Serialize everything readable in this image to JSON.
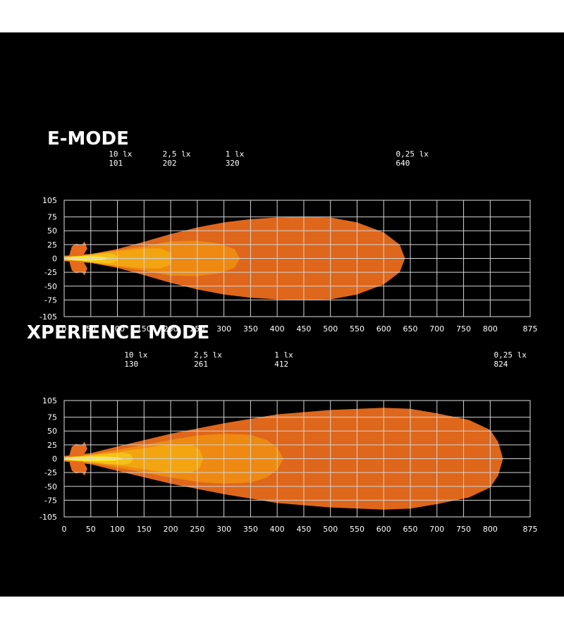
{
  "chart_data": [
    {
      "type": "area",
      "title": "E-MODE",
      "xlim": [
        0,
        875
      ],
      "ylim": [
        -105,
        105
      ],
      "x_ticks": [
        0,
        50,
        100,
        150,
        200,
        250,
        300,
        350,
        400,
        450,
        500,
        550,
        600,
        650,
        700,
        750,
        800,
        875
      ],
      "y_ticks": [
        105,
        75,
        50,
        25,
        0,
        -25,
        -50,
        -75,
        -105
      ],
      "grid": true,
      "colors": [
        "#e56a1c",
        "#ee8a12",
        "#f3a612",
        "#f5c219",
        "#ffef20"
      ],
      "annotations": [
        {
          "label": "10 lx",
          "value": "101",
          "x": 101
        },
        {
          "label": "2,5 lx",
          "value": "202",
          "x": 202
        },
        {
          "label": "1 lx",
          "value": "320",
          "x": 320
        },
        {
          "label": "0,25 lx",
          "value": "640",
          "x": 640
        }
      ],
      "contours": [
        {
          "level": "0,25 lx",
          "x": [
            0,
            50,
            100,
            150,
            200,
            250,
            300,
            350,
            400,
            450,
            500,
            550,
            600,
            630,
            640
          ],
          "y": [
            5,
            8,
            17,
            30,
            44,
            56,
            65,
            71,
            74,
            75,
            74,
            65,
            47,
            25,
            0
          ]
        },
        {
          "level": "1 lx",
          "x": [
            0,
            50,
            100,
            150,
            200,
            250,
            290,
            320,
            330
          ],
          "y": [
            4,
            8,
            15,
            22,
            31,
            32,
            27,
            17,
            0
          ]
        },
        {
          "level": "2,5 lx",
          "x": [
            0,
            50,
            100,
            150,
            180,
            200,
            202
          ],
          "y": [
            3,
            7,
            13,
            18,
            18,
            11,
            0
          ]
        },
        {
          "level": "10 lx",
          "x": [
            0,
            30,
            60,
            85,
            95,
            101
          ],
          "y": [
            2,
            4,
            8,
            9,
            7,
            0
          ]
        }
      ]
    },
    {
      "type": "area",
      "title": "XPERIENCE MODE",
      "xlim": [
        0,
        875
      ],
      "ylim": [
        -105,
        105
      ],
      "x_ticks": [
        0,
        50,
        100,
        150,
        200,
        250,
        300,
        350,
        400,
        450,
        500,
        550,
        600,
        650,
        700,
        750,
        800,
        875
      ],
      "y_ticks": [
        105,
        75,
        50,
        25,
        0,
        -25,
        -50,
        -75,
        -105
      ],
      "grid": true,
      "colors": [
        "#e56a1c",
        "#ee8a12",
        "#f3a612",
        "#f5c219",
        "#ffef20"
      ],
      "annotations": [
        {
          "label": "10 lx",
          "value": "130",
          "x": 130
        },
        {
          "label": "2,5 lx",
          "value": "261",
          "x": 261
        },
        {
          "label": "1 lx",
          "value": "412",
          "x": 412
        },
        {
          "label": "0,25 lx",
          "value": "824",
          "x": 824
        }
      ],
      "contours": [
        {
          "level": "0,25 lx",
          "x": [
            0,
            50,
            100,
            200,
            300,
            400,
            500,
            600,
            650,
            700,
            760,
            800,
            815,
            824
          ],
          "y": [
            5,
            10,
            22,
            45,
            64,
            80,
            88,
            92,
            90,
            82,
            70,
            52,
            30,
            0
          ]
        },
        {
          "level": "1 lx",
          "x": [
            0,
            50,
            100,
            150,
            200,
            250,
            300,
            350,
            380,
            400,
            412
          ],
          "y": [
            4,
            8,
            16,
            25,
            34,
            42,
            45,
            43,
            34,
            20,
            0
          ]
        },
        {
          "level": "2,5 lx",
          "x": [
            0,
            50,
            100,
            150,
            200,
            240,
            255,
            261
          ],
          "y": [
            3,
            7,
            12,
            19,
            26,
            25,
            16,
            0
          ]
        },
        {
          "level": "10 lx",
          "x": [
            0,
            40,
            80,
            110,
            125,
            130
          ],
          "y": [
            2,
            5,
            9,
            11,
            8,
            0
          ]
        }
      ]
    }
  ]
}
